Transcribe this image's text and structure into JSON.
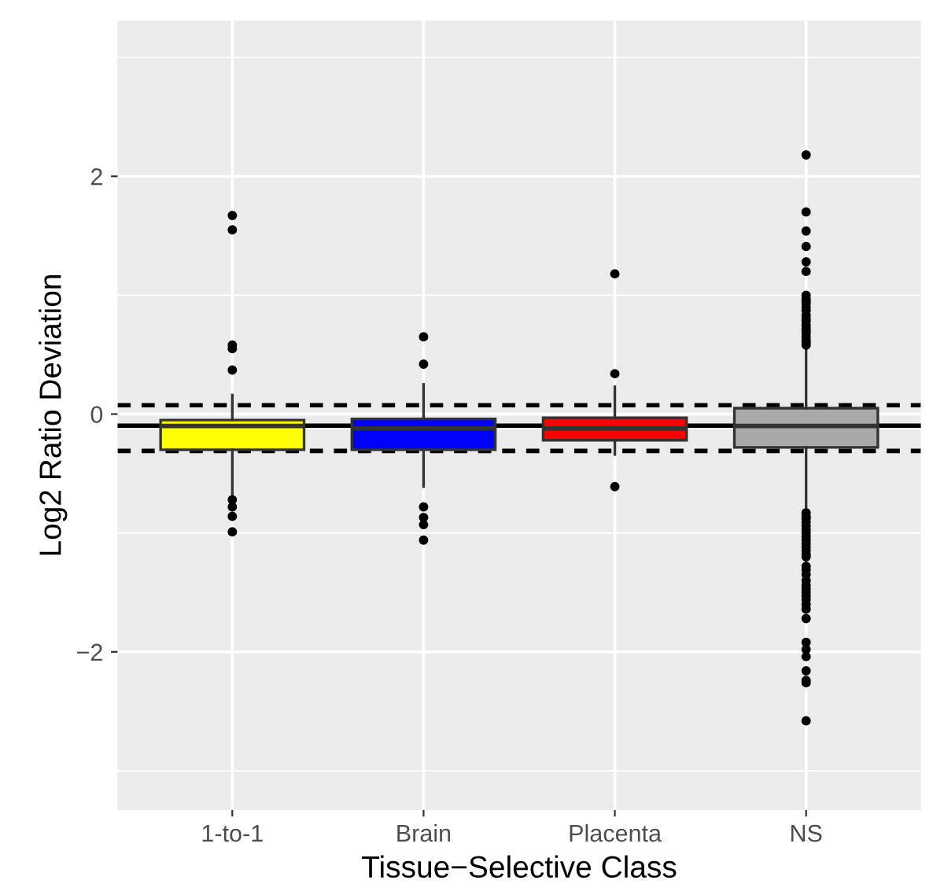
{
  "chart_data": {
    "type": "box",
    "xlabel": "Tissue−Selective Class",
    "ylabel": "Log2 Ratio Deviation",
    "categories": [
      "1-to-1",
      "Brain",
      "Placenta",
      "NS"
    ],
    "colors": [
      "#ffff00",
      "#0000ff",
      "#ff0000",
      "#a9a9a9"
    ],
    "boxes": [
      {
        "low": -0.68,
        "q1": -0.3,
        "median": -0.1,
        "q3": -0.05,
        "high": 0.16,
        "outliers": [
          1.67,
          1.55,
          0.58,
          0.55,
          0.37,
          -0.72,
          -0.78,
          -0.86,
          -0.99
        ]
      },
      {
        "low": -0.61,
        "q1": -0.3,
        "median": -0.12,
        "q3": -0.04,
        "high": 0.25,
        "outliers": [
          0.65,
          0.42,
          -0.78,
          -0.87,
          -0.93,
          -1.06
        ]
      },
      {
        "low": -0.34,
        "q1": -0.22,
        "median": -0.12,
        "q3": -0.03,
        "high": 0.23,
        "outliers": [
          1.18,
          0.34,
          -0.61
        ]
      },
      {
        "low": -0.78,
        "q1": -0.28,
        "median": -0.1,
        "q3": 0.05,
        "high": 0.54,
        "outliers": [
          2.18,
          1.7,
          1.54,
          1.41,
          1.28,
          1.2,
          1.0,
          0.97,
          0.95,
          0.93,
          0.9,
          0.87,
          0.83,
          0.8,
          0.78,
          0.75,
          0.72,
          0.7,
          0.68,
          0.65,
          0.62,
          0.6,
          0.58,
          -0.83,
          -0.86,
          -0.88,
          -0.91,
          -0.94,
          -0.97,
          -1.0,
          -1.03,
          -1.06,
          -1.09,
          -1.12,
          -1.15,
          -1.18,
          -1.2,
          -1.28,
          -1.31,
          -1.35,
          -1.4,
          -1.44,
          -1.47,
          -1.5,
          -1.53,
          -1.56,
          -1.6,
          -1.64,
          -1.72,
          -1.92,
          -1.98,
          -2.04,
          -2.16,
          -2.24,
          -2.26,
          -2.58
        ]
      }
    ],
    "ylim": [
      -3.33,
      3.31
    ],
    "yticks": [
      {
        "value": -2,
        "label": "−2"
      },
      0,
      2
    ],
    "ref_lines": [
      {
        "axis": "y",
        "value": 0.075,
        "color": "#000000",
        "line_style": "dashed"
      },
      {
        "axis": "y",
        "value": -0.097,
        "color": "#000000",
        "line_style": "solid"
      },
      {
        "axis": "y",
        "value": -0.31,
        "color": "#000000",
        "line_style": "dashed"
      }
    ],
    "grid": true
  }
}
